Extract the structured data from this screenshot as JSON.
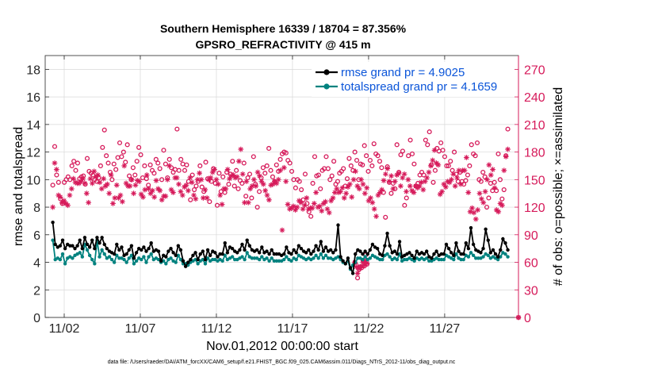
{
  "chart_data": {
    "type": "line",
    "title": "Southern Hemisphere 16339 / 18704 = 87.356%",
    "subtitle": "GPSRO_REFRACTIVITY @ 415 m",
    "xlabel": "Nov.01,2012 00:00:00 start",
    "ylabel": "rmse and totalspread",
    "y2label": "# of obs: o=possible; ×=assimilated",
    "footer": "data file: /Users/raeder/DAI/ATM_forcXX/CAM6_setup/f.e21.FHIST_BGC.f09_025.CAM6assim.011/Diags_NTrS_2012-11/obs_diag_output.nc",
    "xlim": [
      0.5,
      31.6
    ],
    "ylim": [
      0,
      19
    ],
    "y2lim": [
      0,
      285
    ],
    "x_ticks": [
      1.75,
      6.75,
      11.75,
      16.75,
      21.75,
      26.75
    ],
    "x_tick_labels": [
      "11/02",
      "11/07",
      "11/12",
      "11/17",
      "11/22",
      "11/27"
    ],
    "y_ticks": [
      0,
      2,
      4,
      6,
      8,
      10,
      12,
      14,
      16,
      18
    ],
    "y_tick_labels": [
      "0",
      "2",
      "4",
      "6",
      "8",
      "10",
      "12",
      "14",
      "16",
      "18"
    ],
    "y2_ticks": [
      0,
      30,
      60,
      90,
      120,
      150,
      180,
      210,
      240,
      270
    ],
    "y2_tick_labels": [
      "0",
      "30",
      "60",
      "90",
      "120",
      "150",
      "180",
      "210",
      "240",
      "270"
    ],
    "grid": true,
    "legend_position": "top-right",
    "colors": {
      "rmse": "#000000",
      "spread": "#00827f",
      "obs": "#d61a5a",
      "grid": "#d8d8d8",
      "legend_text": "#0b55d9"
    },
    "series": [
      {
        "name": "rmse grand pr = 4.9025",
        "values": [
          6.9,
          5.3,
          5.1,
          5.2,
          5.6,
          5.0,
          5.3,
          5.2,
          5.2,
          5.0,
          5.2,
          5.6,
          5.0,
          5.8,
          5.3,
          5.1,
          5.6,
          5.0,
          5.8,
          5.4,
          5.8,
          5.3,
          5.0,
          4.8,
          4.7,
          4.6,
          5.3,
          4.9,
          5.1,
          4.5,
          4.6,
          4.9,
          5.2,
          4.3,
          4.7,
          5.0,
          4.9,
          5.1,
          4.8,
          5.0,
          5.4,
          4.8,
          4.9,
          4.8,
          4.1,
          4.5,
          4.4,
          4.8,
          5.0,
          4.7,
          4.5,
          5.2,
          4.9,
          4.1,
          3.7,
          4.0,
          4.2,
          4.5,
          4.7,
          4.2,
          4.6,
          4.8,
          4.2,
          4.9,
          4.5,
          4.8,
          4.7,
          4.4,
          4.6,
          4.6,
          5.4,
          4.7,
          5.1,
          5.0,
          4.8,
          4.7,
          4.9,
          5.3,
          4.9,
          5.6,
          5.2,
          4.9,
          4.8,
          4.9,
          4.7,
          5.1,
          4.7,
          4.8,
          4.6,
          4.9,
          4.6,
          4.6,
          4.6,
          4.5,
          4.6,
          5.1,
          4.7,
          4.6,
          4.9,
          4.7,
          5.2,
          5.0,
          4.8,
          4.7,
          4.9,
          4.6,
          4.8,
          5.2,
          4.9,
          5.5,
          4.8,
          5.1,
          4.8,
          4.9,
          4.7,
          4.9,
          6.7,
          4.4,
          4.1,
          3.9,
          4.3,
          3.6,
          3.2,
          4.6,
          4.9,
          4.8,
          4.6,
          4.8,
          4.6,
          4.9,
          5.3,
          5.1,
          5.0,
          4.6,
          4.5,
          5.2,
          6.1,
          5.2,
          4.7,
          4.8,
          4.6,
          5.5,
          4.4,
          4.5,
          4.6,
          4.7,
          4.5,
          4.3,
          4.8,
          4.6,
          4.7,
          4.6,
          4.8,
          4.4,
          4.3,
          4.6,
          4.8,
          4.5,
          4.6,
          4.6,
          5.3,
          5.0,
          4.7,
          4.5,
          5.4,
          4.8,
          4.6,
          4.6,
          5.4,
          5.0,
          6.5,
          5.3,
          4.9,
          4.8,
          4.7,
          5.0,
          6.4,
          5.6,
          4.7,
          4.9,
          4.6,
          4.4,
          4.9,
          5.7,
          5.4,
          4.9
        ]
      },
      {
        "name": "totalspread grand pr = 4.1659",
        "values": [
          5.6,
          4.2,
          4.3,
          4.2,
          4.6,
          3.9,
          4.3,
          4.4,
          4.3,
          4.5,
          4.6,
          4.7,
          4.4,
          5.3,
          4.9,
          4.5,
          4.2,
          3.9,
          5.6,
          4.4,
          4.9,
          4.6,
          4.3,
          4.4,
          4.2,
          4.0,
          4.5,
          4.3,
          4.3,
          4.2,
          4.0,
          4.3,
          4.5,
          3.9,
          4.1,
          4.3,
          4.2,
          4.4,
          4.0,
          4.4,
          4.6,
          4.2,
          4.3,
          4.2,
          4.0,
          4.1,
          3.9,
          4.2,
          4.3,
          4.1,
          4.0,
          4.5,
          4.2,
          3.9,
          3.9,
          3.8,
          4.0,
          4.1,
          4.2,
          3.9,
          4.1,
          4.2,
          3.9,
          4.3,
          4.1,
          4.2,
          4.2,
          4.1,
          4.2,
          4.1,
          4.5,
          4.2,
          4.3,
          4.4,
          4.2,
          4.2,
          4.3,
          4.4,
          4.2,
          4.7,
          4.4,
          4.3,
          4.3,
          4.3,
          4.2,
          4.4,
          4.2,
          4.3,
          4.1,
          4.3,
          4.1,
          4.1,
          4.1,
          4.1,
          4.2,
          4.4,
          4.2,
          4.1,
          4.3,
          4.2,
          4.5,
          4.4,
          4.3,
          4.2,
          4.3,
          4.2,
          4.3,
          4.5,
          4.3,
          4.6,
          4.3,
          4.5,
          4.3,
          4.3,
          4.2,
          4.3,
          4.4,
          4.2,
          4.0,
          3.9,
          4.1,
          3.5,
          3.8,
          4.0,
          4.3,
          4.3,
          4.2,
          4.4,
          4.2,
          4.3,
          4.5,
          4.4,
          4.3,
          4.2,
          4.2,
          4.5,
          4.6,
          4.4,
          4.2,
          4.3,
          4.2,
          4.6,
          4.1,
          4.2,
          4.2,
          4.3,
          4.2,
          4.1,
          4.3,
          4.2,
          4.3,
          4.2,
          4.3,
          4.1,
          4.1,
          4.2,
          4.3,
          4.2,
          4.2,
          4.2,
          4.5,
          4.4,
          4.3,
          4.2,
          4.6,
          4.3,
          4.2,
          4.2,
          4.5,
          4.4,
          4.7,
          4.5,
          4.3,
          4.3,
          4.3,
          4.4,
          4.6,
          4.5,
          4.3,
          4.4,
          4.3,
          4.2,
          4.4,
          4.7,
          4.6,
          4.4
        ]
      }
    ],
    "obs_possible": [
      144,
      186,
      155,
      147,
      129,
      124,
      147,
      150,
      153,
      150,
      165,
      170,
      160,
      168,
      151,
      153,
      154,
      145,
      173,
      159,
      157,
      155,
      150,
      148,
      152,
      165,
      185,
      204,
      176,
      168,
      158,
      150,
      167,
      161,
      174,
      190,
      175,
      180,
      169,
      188,
      154,
      150,
      163,
      155,
      170,
      185,
      177,
      152,
      165,
      151,
      144,
      166,
      160,
      157,
      172,
      168,
      162,
      150,
      182,
      167,
      152,
      172,
      163,
      158,
      161,
      205,
      160,
      172,
      167,
      160,
      166,
      148,
      128,
      155,
      139,
      143,
      148,
      165,
      142,
      137,
      169,
      151,
      126,
      148,
      162,
      146,
      122,
      157,
      137,
      153,
      136,
      158,
      145,
      156,
      170,
      143,
      160,
      140,
      149,
      146,
      168,
      132,
      152,
      156,
      130,
      175,
      145,
      120,
      137,
      152,
      163,
      157,
      165,
      184,
      160,
      153,
      148,
      166,
      159,
      172,
      178,
      180,
      179,
      171,
      168,
      159,
      150,
      141,
      150,
      148,
      139,
      128,
      156,
      124,
      115,
      110,
      146,
      175,
      154,
      155,
      140,
      160,
      162,
      175,
      162,
      150,
      154,
      170,
      145,
      148,
      157,
      159,
      162,
      143,
      151,
      173,
      165,
      160,
      180,
      171,
      150,
      167,
      166,
      187,
      176,
      159,
      171,
      165,
      189,
      178,
      176,
      170,
      163,
      136,
      109,
      164,
      147,
      135,
      146,
      140,
      188,
      158,
      177,
      181,
      122,
      130,
      176,
      193,
      178,
      167,
      143,
      146,
      155,
      158,
      155,
      193,
      188,
      202,
      166,
      147,
      160,
      184,
      181,
      190,
      182,
      175,
      165,
      165,
      170,
      160,
      180,
      156,
      148,
      158,
      148,
      145,
      149,
      155,
      165,
      188,
      178,
      176,
      190,
      150,
      148,
      158,
      153,
      120,
      130,
      146,
      138,
      147,
      138,
      178,
      150,
      129,
      139,
      176,
      205
    ],
    "obs_assimilated": [
      120,
      168,
      161,
      133,
      131,
      125,
      127,
      124,
      122,
      133,
      140,
      151,
      147,
      146,
      146,
      148,
      151,
      146,
      135,
      125,
      151,
      146,
      159,
      153,
      155,
      147,
      140,
      151,
      143,
      145,
      135,
      155,
      124,
      130,
      144,
      130,
      133,
      126,
      165,
      146,
      143,
      143,
      150,
      135,
      144,
      149,
      148,
      134,
      131,
      139,
      155,
      140,
      135,
      138,
      131,
      149,
      140,
      138,
      128,
      132,
      132,
      150,
      165,
      139,
      136,
      152,
      152,
      145,
      137,
      133,
      142,
      144,
      138,
      152,
      147,
      133,
      129,
      150,
      157,
      150,
      130,
      139,
      130,
      150,
      152,
      158,
      161,
      150,
      145,
      133,
      123,
      140,
      140,
      161,
      151,
      154,
      155,
      152,
      153,
      170,
      183,
      156,
      125,
      148,
      125,
      140,
      143,
      150,
      143,
      158,
      154,
      148,
      145,
      138,
      133,
      128,
      144,
      145,
      148,
      146,
      150,
      160,
      95,
      163,
      148,
      123,
      118,
      119,
      121,
      117,
      120,
      127,
      125,
      118,
      122,
      130,
      118,
      119,
      119,
      124,
      136,
      120,
      121,
      116,
      124,
      126,
      118,
      114,
      127,
      130,
      136,
      140,
      136,
      137,
      141,
      130,
      135,
      142,
      145,
      131,
      150,
      159,
      143,
      140,
      150,
      145,
      135,
      141,
      127,
      130,
      125,
      118,
      110,
      133,
      136,
      139,
      149,
      156,
      162,
      148,
      154,
      140,
      148,
      155,
      157,
      143,
      152,
      156,
      137,
      150,
      143,
      138,
      136,
      143,
      141,
      143,
      147,
      139,
      148,
      152,
      158,
      165,
      171,
      182,
      168,
      166,
      134,
      137,
      145,
      142,
      148,
      147,
      150,
      156,
      143,
      152,
      160,
      145,
      160,
      160,
      174,
      136,
      115,
      119,
      114,
      107,
      117,
      135,
      129,
      125,
      137,
      150,
      166,
      155,
      161,
      141,
      117,
      115,
      124,
      122,
      160,
      175,
      183
    ],
    "obs_gap_possible": [
      60,
      57,
      43,
      52,
      55,
      54,
      62,
      56,
      68,
      58
    ],
    "obs_gap_assimilated": [
      60,
      55,
      48,
      53,
      54,
      56,
      60,
      57,
      62,
      59
    ],
    "obs_final": 0
  }
}
